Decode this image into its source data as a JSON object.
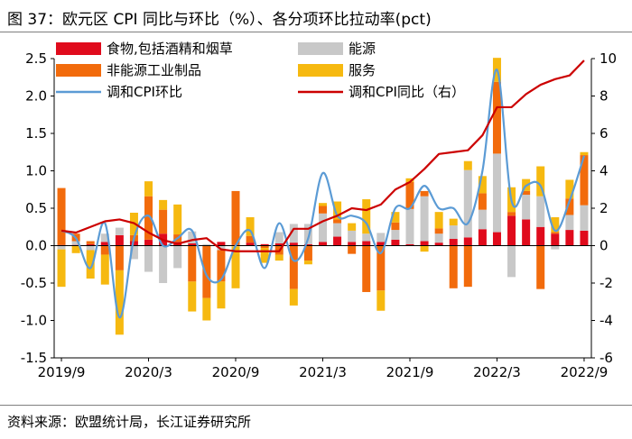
{
  "header": {
    "title": "图 37：欧元区 CPI 同比与环比（%）、各分项环比拉动率(pct)"
  },
  "footer": {
    "source": "资料来源：欧盟统计局，长江证券研究所"
  },
  "chart_data": {
    "type": "bar",
    "stacked": true,
    "categories": [
      "2019/9",
      "2019/10",
      "2019/11",
      "2019/12",
      "2020/1",
      "2020/2",
      "2020/3",
      "2020/4",
      "2020/5",
      "2020/6",
      "2020/7",
      "2020/8",
      "2020/9",
      "2020/10",
      "2020/11",
      "2020/12",
      "2021/1",
      "2021/2",
      "2021/3",
      "2021/4",
      "2021/5",
      "2021/6",
      "2021/7",
      "2021/8",
      "2021/9",
      "2021/10",
      "2021/11",
      "2021/12",
      "2022/1",
      "2022/2",
      "2022/3",
      "2022/4",
      "2022/5",
      "2022/6",
      "2022/7",
      "2022/8",
      "2022/9"
    ],
    "x_tick_labels": [
      "2019/9",
      "2020/3",
      "2020/9",
      "2021/3",
      "2021/9",
      "2022/3",
      "2022/9"
    ],
    "y_left": {
      "min": -1.5,
      "max": 2.5,
      "step": 0.5,
      "ticks": [
        "-1.5",
        "-1.0",
        "-0.5",
        "0.0",
        "0.5",
        "1.0",
        "1.5",
        "2.0",
        "2.5"
      ]
    },
    "y_right": {
      "min": -6,
      "max": 10,
      "step": 2,
      "ticks": [
        "-6",
        "-4",
        "-2",
        "0",
        "2",
        "4",
        "6",
        "8",
        "10"
      ]
    },
    "series": [
      {
        "name": "食物,包括酒精和烟草",
        "type": "bar",
        "color": "#e00b1c",
        "values": [
          0.01,
          0.01,
          0.02,
          0.05,
          0.14,
          0.06,
          0.08,
          0.16,
          0.05,
          0.03,
          0.0,
          0.05,
          0.01,
          0.04,
          0.02,
          0.03,
          0.04,
          0.02,
          0.05,
          0.12,
          0.05,
          0.06,
          0.05,
          0.08,
          0.02,
          0.06,
          0.04,
          0.09,
          0.11,
          0.22,
          0.18,
          0.4,
          0.35,
          0.25,
          0.16,
          0.21,
          0.2
        ]
      },
      {
        "name": "能源",
        "type": "bar",
        "color": "#c8c8c8",
        "values": [
          -0.05,
          0.05,
          -0.06,
          0.11,
          0.1,
          -0.18,
          -0.35,
          -0.5,
          -0.3,
          0.16,
          0.02,
          -0.06,
          -0.01,
          0.0,
          0.0,
          0.15,
          0.25,
          0.27,
          0.38,
          0.18,
          0.15,
          0.1,
          0.12,
          0.13,
          0.47,
          0.6,
          0.12,
          0.18,
          0.9,
          0.26,
          1.05,
          -0.42,
          0.33,
          0.41,
          -0.05,
          0.2,
          0.34
        ]
      },
      {
        "name": "非能源工业制品",
        "type": "bar",
        "color": "#f26b0c",
        "values": [
          0.76,
          0.1,
          0.04,
          -0.12,
          -0.33,
          0.08,
          0.58,
          0.32,
          0.1,
          -0.48,
          -0.7,
          -0.42,
          0.72,
          0.09,
          -0.03,
          -0.12,
          -0.58,
          -0.2,
          0.1,
          0.05,
          -0.11,
          -0.62,
          -0.6,
          0.1,
          0.36,
          0.07,
          0.07,
          -0.57,
          -0.55,
          0.22,
          0.96,
          0.05,
          0.05,
          -0.58,
          0.02,
          0.22,
          0.67
        ]
      },
      {
        "name": "服务",
        "type": "bar",
        "color": "#f6b910",
        "values": [
          -0.5,
          -0.1,
          -0.38,
          -0.4,
          -0.86,
          0.3,
          0.2,
          0.13,
          0.4,
          -0.4,
          -0.3,
          -0.36,
          -0.56,
          0.25,
          -0.2,
          -0.08,
          -0.22,
          -0.05,
          0.04,
          0.24,
          0.1,
          0.46,
          -0.27,
          0.14,
          0.05,
          -0.08,
          0.22,
          0.09,
          0.12,
          0.23,
          0.32,
          0.33,
          0.16,
          0.4,
          0.2,
          0.25,
          0.04
        ]
      },
      {
        "name": "调和CPI环比",
        "type": "line",
        "axis": "left",
        "color": "#5b9bd5",
        "values": [
          0.2,
          0.1,
          -0.3,
          0.3,
          -0.96,
          0.1,
          0.4,
          0.0,
          0.1,
          0.2,
          -0.4,
          -0.45,
          0.0,
          0.2,
          -0.3,
          0.3,
          -0.2,
          0.1,
          0.97,
          0.4,
          0.4,
          0.3,
          -0.1,
          0.5,
          0.5,
          0.8,
          0.5,
          0.5,
          0.3,
          1.0,
          2.35,
          0.6,
          0.8,
          0.8,
          0.2,
          0.6,
          1.2
        ]
      },
      {
        "name": "调和CPI同比（右）",
        "type": "line",
        "axis": "right",
        "color": "#cc0000",
        "values": [
          0.8,
          0.7,
          1.0,
          1.3,
          1.4,
          1.2,
          0.7,
          0.3,
          0.1,
          0.3,
          0.4,
          -0.2,
          -0.3,
          -0.3,
          -0.3,
          -0.3,
          0.9,
          0.9,
          1.3,
          1.6,
          2.0,
          1.9,
          2.2,
          3.0,
          3.4,
          4.1,
          4.9,
          5.0,
          5.1,
          5.9,
          7.4,
          7.4,
          8.1,
          8.6,
          8.9,
          9.1,
          9.9
        ]
      }
    ]
  }
}
